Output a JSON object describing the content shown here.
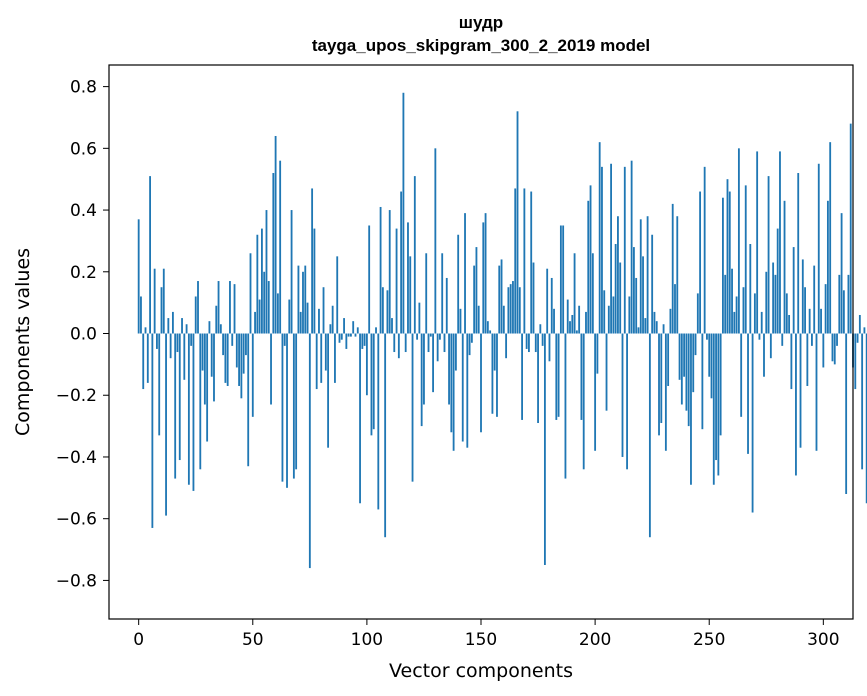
{
  "chart_data": {
    "type": "bar",
    "title_line1": "шудр",
    "title_line2": "tayga_upos_skipgram_300_2_2019 model",
    "xlabel": "Vector components",
    "ylabel": "Components values",
    "xlim": [
      -13,
      313
    ],
    "ylim": [
      -0.925,
      0.87
    ],
    "xticks": [
      0,
      50,
      100,
      150,
      200,
      250,
      300
    ],
    "xtick_labels": [
      "0",
      "50",
      "100",
      "150",
      "200",
      "250",
      "300"
    ],
    "yticks": [
      -0.8,
      -0.6,
      -0.4,
      -0.2,
      0.0,
      0.2,
      0.4,
      0.6,
      0.8
    ],
    "ytick_labels": [
      "−0.8",
      "−0.6",
      "−0.4",
      "−0.2",
      "0.0",
      "0.2",
      "0.4",
      "0.6",
      "0.8"
    ],
    "bar_color": "#1f77b4",
    "values": [
      0.37,
      0.12,
      -0.18,
      0.02,
      -0.16,
      0.51,
      -0.63,
      0.21,
      -0.05,
      -0.33,
      0.15,
      0.21,
      -0.59,
      0.05,
      -0.08,
      0.07,
      -0.47,
      -0.06,
      -0.41,
      0.05,
      -0.15,
      0.03,
      -0.49,
      -0.04,
      -0.51,
      0.12,
      0.17,
      -0.44,
      -0.12,
      -0.23,
      -0.35,
      0.04,
      -0.14,
      -0.22,
      0.09,
      0.17,
      0.03,
      -0.07,
      -0.16,
      -0.17,
      0.17,
      -0.04,
      0.16,
      -0.11,
      -0.17,
      -0.21,
      -0.13,
      -0.07,
      -0.43,
      0.26,
      -0.27,
      0.07,
      0.32,
      0.11,
      0.34,
      0.2,
      0.4,
      0.17,
      -0.23,
      0.52,
      0.64,
      0.13,
      0.56,
      -0.48,
      -0.04,
      -0.5,
      0.11,
      0.4,
      -0.47,
      -0.44,
      0.22,
      0.07,
      0.2,
      0.22,
      0.1,
      -0.76,
      0.47,
      0.34,
      -0.18,
      0.08,
      -0.16,
      0.15,
      -0.12,
      -0.37,
      0.03,
      0.09,
      -0.16,
      0.25,
      -0.03,
      -0.02,
      0.05,
      -0.05,
      -0.01,
      -0.01,
      0.04,
      -0.01,
      0.02,
      -0.55,
      -0.05,
      -0.04,
      -0.2,
      0.35,
      -0.33,
      -0.31,
      0.02,
      -0.57,
      0.41,
      0.15,
      -0.66,
      0.14,
      0.4,
      0.05,
      -0.06,
      0.34,
      -0.08,
      0.46,
      0.78,
      -0.06,
      0.36,
      0.25,
      -0.48,
      0.51,
      -0.02,
      0.1,
      -0.3,
      -0.23,
      0.26,
      -0.06,
      -0.01,
      -0.19,
      0.6,
      -0.09,
      -0.02,
      0.26,
      -0.06,
      0.18,
      -0.23,
      -0.32,
      -0.38,
      -0.12,
      0.32,
      0.08,
      -0.35,
      0.39,
      -0.37,
      -0.07,
      -0.03,
      0.22,
      0.28,
      0.09,
      -0.32,
      0.36,
      0.39,
      0.04,
      0.01,
      -0.26,
      -0.12,
      -0.27,
      0.22,
      0.24,
      0.09,
      -0.08,
      0.15,
      0.16,
      0.17,
      0.47,
      0.72,
      0.15,
      -0.28,
      0.47,
      -0.05,
      -0.06,
      0.46,
      0.23,
      -0.06,
      -0.29,
      0.03,
      -0.04,
      -0.75,
      0.21,
      -0.09,
      0.18,
      0.08,
      -0.28,
      -0.27,
      0.35,
      0.35,
      -0.47,
      0.11,
      0.04,
      0.06,
      0.26,
      0.01,
      0.09,
      -0.28,
      -0.44,
      0.07,
      0.43,
      0.48,
      0.26,
      -0.38,
      -0.13,
      0.62,
      0.54,
      0.14,
      -0.25,
      0.09,
      0.55,
      0.12,
      0.29,
      0.38,
      0.23,
      -0.4,
      0.54,
      -0.44,
      0.12,
      0.56,
      0.28,
      0.18,
      0.02,
      0.37,
      0.25,
      0.05,
      0.38,
      -0.66,
      0.32,
      0.07,
      0.04,
      -0.33,
      -0.29,
      0.03,
      -0.38,
      -0.17,
      0.08,
      0.42,
      0.16,
      0.38,
      -0.15,
      -0.23,
      -0.14,
      -0.25,
      -0.3,
      -0.49,
      -0.19,
      -0.07,
      0.13,
      0.46,
      -0.31,
      0.54,
      -0.02,
      -0.14,
      -0.21,
      -0.49,
      -0.41,
      -0.46,
      -0.33,
      0.44,
      0.19,
      0.5,
      0.46,
      0.21,
      0.07,
      0.12,
      0.6,
      -0.27,
      0.15,
      0.48,
      -0.39,
      0.29,
      -0.58,
      0.13,
      0.59,
      -0.02,
      0.07,
      -0.14,
      0.2,
      0.51,
      -0.08,
      0.23,
      0.19,
      0.34,
      0.59,
      -0.04,
      0.43,
      0.13,
      0.06,
      -0.18,
      0.28,
      -0.46,
      0.52,
      -0.37,
      0.24,
      0.15,
      -0.17,
      0.08,
      -0.04,
      0.22,
      -0.38,
      0.55,
      0.08,
      -0.11,
      0.16,
      0.43,
      0.62,
      -0.09,
      -0.1,
      -0.04,
      0.19,
      0.39,
      0.14,
      -0.52,
      0.19,
      0.68,
      -0.11,
      -0.18,
      -0.03,
      0.06,
      -0.44,
      0.02,
      -0.55
    ]
  }
}
